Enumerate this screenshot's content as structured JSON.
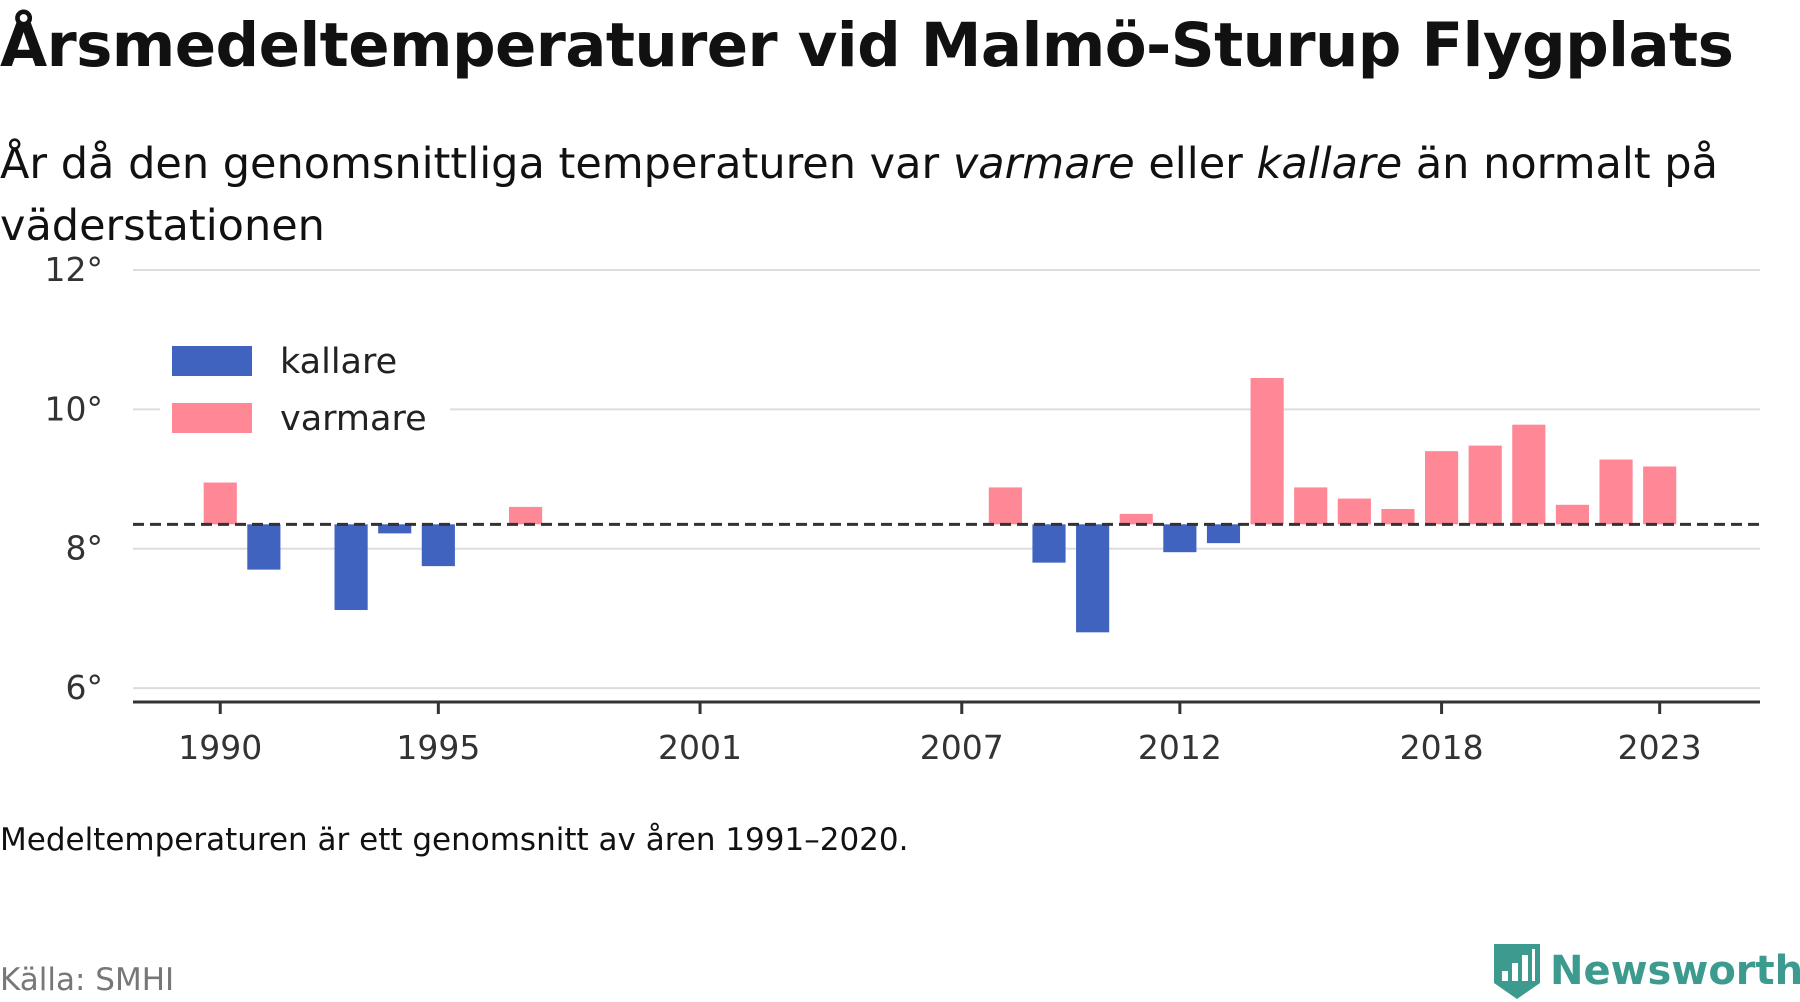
{
  "title": "Årsmedeltemperaturer vid Malmö-Sturup Flygplats",
  "subtitle": {
    "part1": "År då den genomsnittliga temperaturen var ",
    "warm_word": "varmare",
    "part2": " eller ",
    "cold_word": "kallare",
    "part3": " än normalt på väderstationen"
  },
  "note": "Medeltemperaturen är ett genomsnitt av åren 1991–2020.",
  "source": "Källa: SMHI",
  "brand": {
    "name": "Newsworthy",
    "color": "#3d9a8f",
    "icon": "newsworthy-logo-icon"
  },
  "colors": {
    "cold": "#4063c0",
    "warm": "#ff8896",
    "grid": "#dddddd",
    "axis": "#333333",
    "baseline": "#333333"
  },
  "chart_data": {
    "type": "bar",
    "baseline": 8.35,
    "baseline_style": "dashed",
    "ylim": [
      5.8,
      12
    ],
    "yticks": [
      6,
      8,
      10,
      12
    ],
    "ytick_labels": [
      "6°",
      "8°",
      "10°",
      "12°"
    ],
    "xticks": [
      1990,
      1995,
      2001,
      2007,
      2012,
      2018,
      2023
    ],
    "xtick_labels": [
      "1990",
      "1995",
      "2001",
      "2007",
      "2012",
      "2018",
      "2023"
    ],
    "xlim": [
      1988,
      2025.3
    ],
    "grid": true,
    "legend": {
      "position": "top-left",
      "entries": [
        {
          "label": "kallare",
          "color": "#4063c0"
        },
        {
          "label": "varmare",
          "color": "#ff8896"
        }
      ]
    },
    "x": [
      1990,
      1991,
      1993,
      1994,
      1995,
      1997,
      2008,
      2009,
      2010,
      2011,
      2012,
      2013,
      2014,
      2015,
      2016,
      2017,
      2018,
      2019,
      2020,
      2021,
      2022,
      2023
    ],
    "values": [
      8.95,
      7.7,
      7.12,
      8.22,
      7.75,
      8.6,
      8.88,
      7.8,
      6.8,
      8.5,
      7.95,
      8.08,
      10.45,
      8.88,
      8.72,
      8.57,
      9.4,
      9.48,
      9.78,
      8.63,
      9.28,
      9.18
    ]
  }
}
